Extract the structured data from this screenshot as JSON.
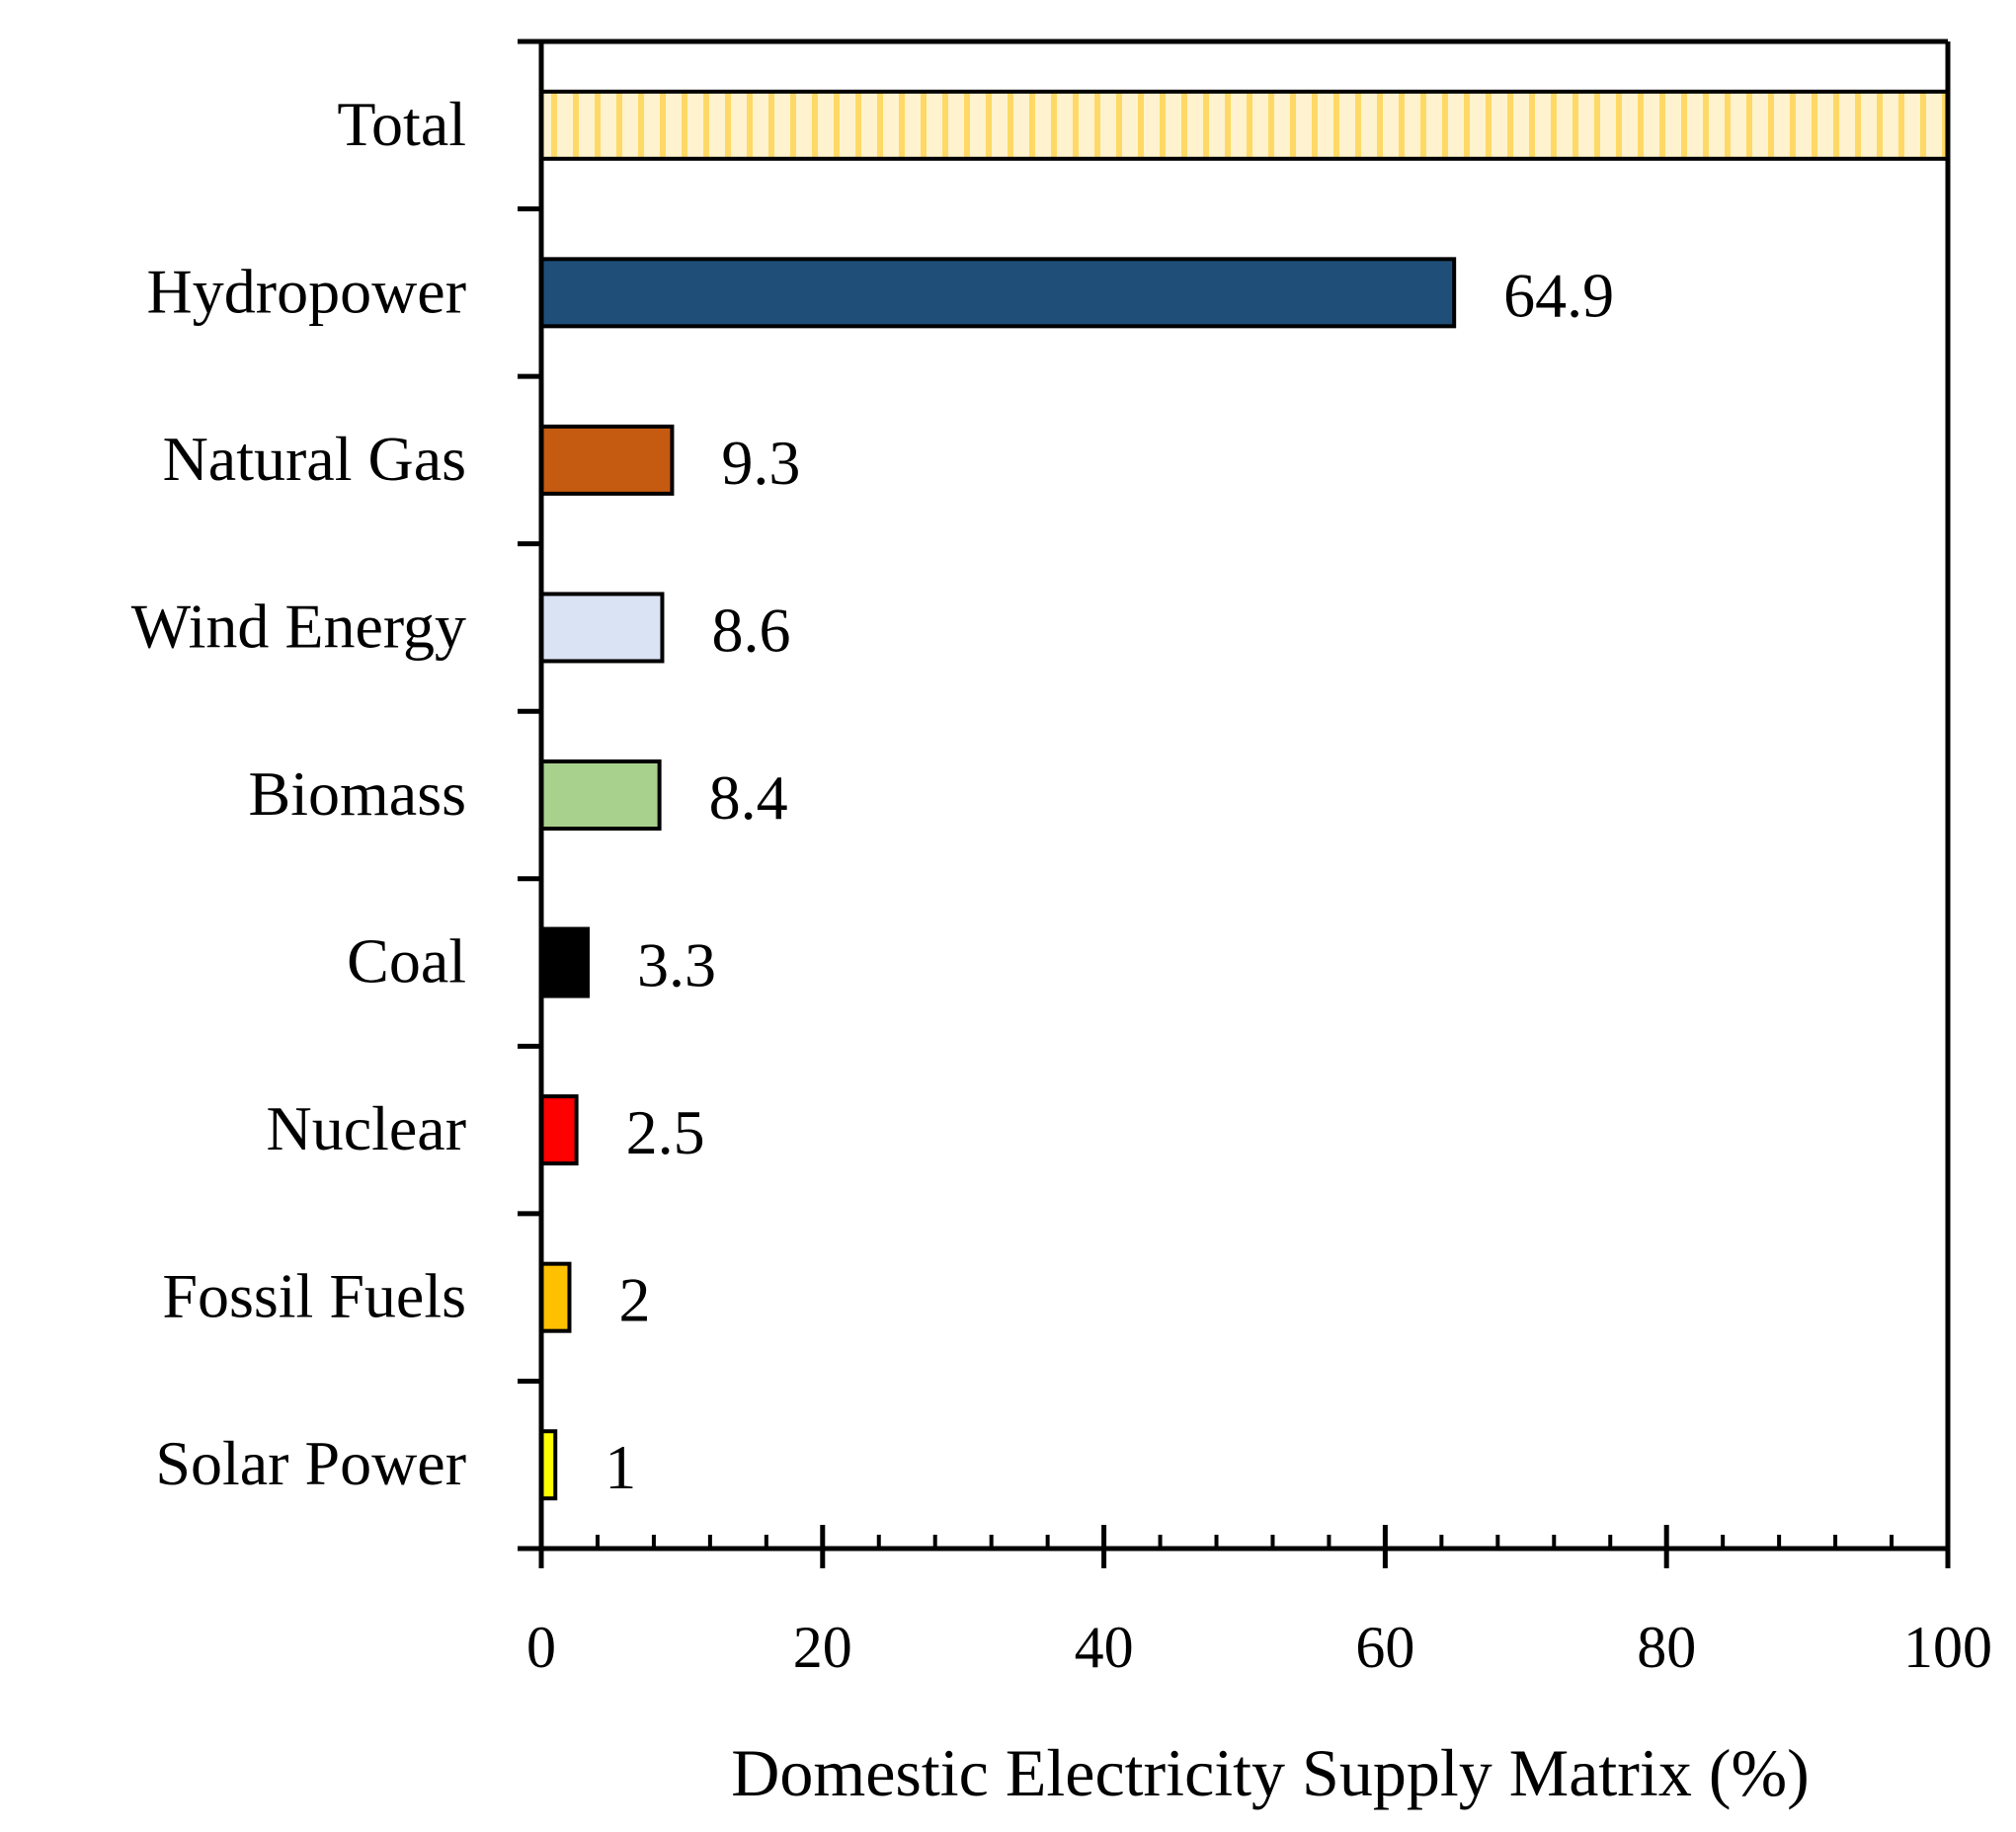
{
  "chart_data": {
    "type": "bar",
    "orientation": "horizontal",
    "title": "",
    "xlabel": "Domestic Electricity Supply Matrix (%)",
    "ylabel": "",
    "xlim": [
      0,
      100
    ],
    "xticks": [
      0,
      20,
      40,
      60,
      80,
      100
    ],
    "categories": [
      "Total",
      "Hydropower",
      "Natural Gas",
      "Wind Energy",
      "Biomass",
      "Coal",
      "Nuclear",
      "Fossil Fuels",
      "Solar Power"
    ],
    "values": [
      100,
      64.9,
      9.3,
      8.6,
      8.4,
      3.3,
      2.5,
      2,
      1
    ],
    "value_labels": [
      "",
      "64.9",
      "9.3",
      "8.6",
      "8.4",
      "3.3",
      "2.5",
      "2",
      "1"
    ],
    "colors": [
      "#fff3cf",
      "#1f4e79",
      "#c55a11",
      "#dae3f3",
      "#a9d18e",
      "#000000",
      "#ff0000",
      "#ffc000",
      "#ffff00"
    ],
    "hatched": [
      true,
      false,
      false,
      false,
      false,
      false,
      false,
      false,
      false
    ],
    "hatch_color": "#ffd966",
    "grid": false
  }
}
